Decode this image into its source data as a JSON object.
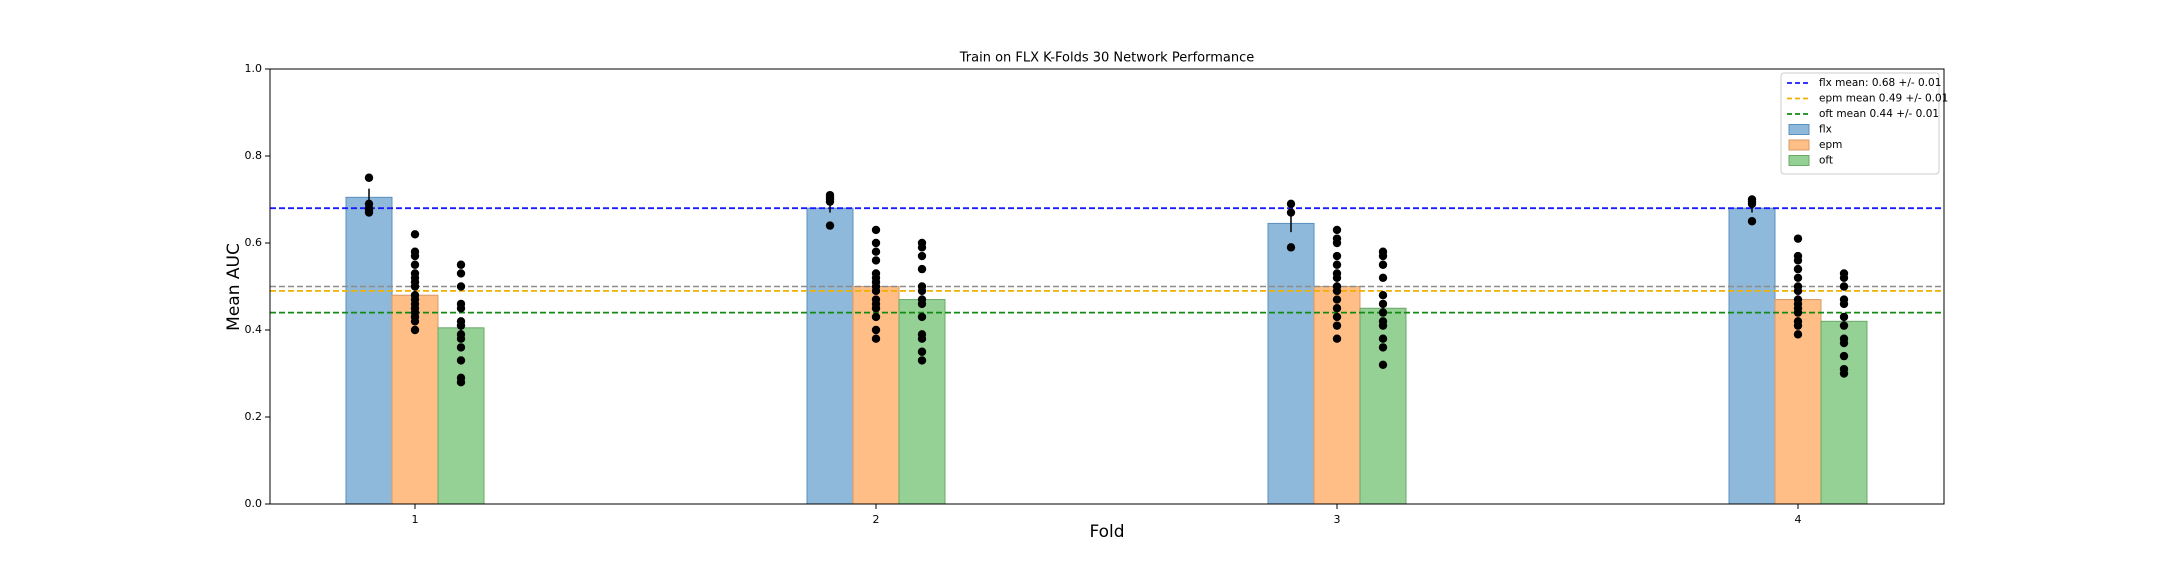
{
  "chart_data": {
    "type": "bar",
    "title": "Train on FLX K-Folds 30 Network Performance",
    "x_label": "Fold",
    "y_label": "Mean AUC",
    "categories": [
      "1",
      "2",
      "3",
      "4"
    ],
    "ylim": [
      0,
      1
    ],
    "yticks": [
      {
        "value": 0,
        "label": "0.0"
      },
      0.2,
      0.4,
      0.6,
      0.8,
      {
        "value": 1,
        "label": "1.0"
      }
    ],
    "series": [
      {
        "name": "flx",
        "color": "#8fb9da",
        "edge": "#5b8fbf",
        "values": [
          0.705,
          0.68,
          0.645,
          0.68
        ],
        "errors": [
          0.02,
          0.01,
          0.02,
          0.01
        ],
        "points": [
          [
            0.75,
            0.69,
            0.68,
            0.675,
            0.67
          ],
          [
            0.71,
            0.705,
            0.7,
            0.695,
            0.64
          ],
          [
            0.69,
            0.67,
            0.59
          ],
          [
            0.7,
            0.695,
            0.69,
            0.65
          ]
        ]
      },
      {
        "name": "epm",
        "color": "#ffbe86",
        "edge": "#d99a66",
        "values": [
          0.48,
          0.5,
          0.5,
          0.47
        ],
        "errors": [
          0.01,
          0.01,
          0.01,
          0.01
        ],
        "points": [
          [
            0.62,
            0.58,
            0.57,
            0.55,
            0.53,
            0.52,
            0.51,
            0.5,
            0.48,
            0.47,
            0.46,
            0.45,
            0.44,
            0.43,
            0.42,
            0.4
          ],
          [
            0.63,
            0.6,
            0.58,
            0.56,
            0.53,
            0.52,
            0.51,
            0.5,
            0.49,
            0.47,
            0.46,
            0.45,
            0.43,
            0.4,
            0.38
          ],
          [
            0.63,
            0.61,
            0.6,
            0.57,
            0.55,
            0.53,
            0.52,
            0.5,
            0.49,
            0.47,
            0.45,
            0.43,
            0.41,
            0.38
          ],
          [
            0.61,
            0.57,
            0.56,
            0.54,
            0.52,
            0.5,
            0.49,
            0.47,
            0.46,
            0.45,
            0.44,
            0.42,
            0.41,
            0.39
          ]
        ]
      },
      {
        "name": "oft",
        "color": "#95d095",
        "edge": "#6aa86a",
        "values": [
          0.405,
          0.47,
          0.45,
          0.42
        ],
        "errors": [
          0.01,
          0.01,
          0.01,
          0.01
        ],
        "points": [
          [
            0.55,
            0.53,
            0.5,
            0.46,
            0.45,
            0.42,
            0.41,
            0.39,
            0.38,
            0.36,
            0.33,
            0.29,
            0.28
          ],
          [
            0.6,
            0.59,
            0.57,
            0.54,
            0.5,
            0.49,
            0.47,
            0.46,
            0.43,
            0.39,
            0.38,
            0.35,
            0.33
          ],
          [
            0.58,
            0.57,
            0.55,
            0.52,
            0.48,
            0.46,
            0.44,
            0.42,
            0.41,
            0.38,
            0.36,
            0.32
          ],
          [
            0.53,
            0.52,
            0.5,
            0.47,
            0.46,
            0.43,
            0.41,
            0.38,
            0.37,
            0.34,
            0.31,
            0.3
          ]
        ]
      }
    ],
    "mean_lines": [
      {
        "label": "flx mean: 0.68 +/- 0.01",
        "value": 0.68,
        "color": "#1a1aff"
      },
      {
        "label": "epm mean 0.49 +/- 0.01",
        "value": 0.49,
        "color": "#f0b000"
      },
      {
        "label": "oft mean 0.44 +/- 0.01",
        "value": 0.44,
        "color": "#138a13"
      }
    ],
    "reference_line": {
      "value": 0.5,
      "color": "#8c8c8c"
    },
    "legend": "upper right"
  }
}
